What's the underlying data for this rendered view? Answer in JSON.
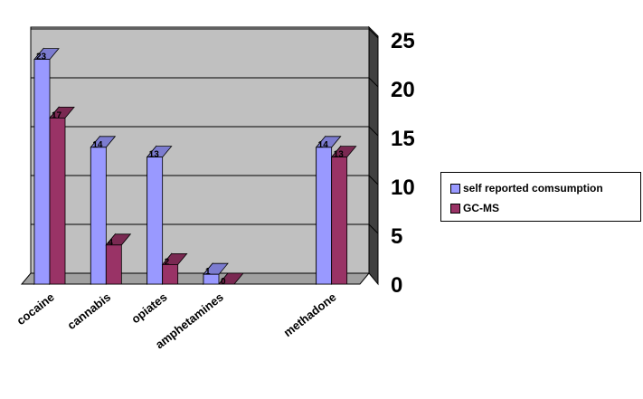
{
  "chart_data": {
    "type": "bar",
    "categories": [
      "cocaine",
      "cannabis",
      "opiates",
      "amphetamines",
      "",
      "methadone"
    ],
    "series": [
      {
        "name": "self reported comsumption",
        "values": [
          23,
          14,
          13,
          1,
          null,
          14
        ],
        "labels": [
          "23",
          "14",
          "13",
          "1",
          "",
          "14"
        ]
      },
      {
        "name": "GC-MS",
        "values": [
          17,
          4,
          2,
          0,
          null,
          13
        ],
        "labels": [
          "17",
          "4",
          "2",
          "0",
          "",
          "13"
        ]
      }
    ],
    "y_ticks": [
      "0",
      "5",
      "10",
      "15",
      "20",
      "25"
    ],
    "ylim": [
      0,
      25
    ],
    "grid": true,
    "legend": "right",
    "three_d": true,
    "colors": {
      "series1": "#9999ff",
      "series1_side": "#4b4b86",
      "series1_top": "#7c7cd0",
      "series2": "#993366",
      "series2_side": "#5c1f3d",
      "series2_top": "#7a2952",
      "wall": "#c0c0c0",
      "floor": "#a0a0a0",
      "wall_side": "#404040"
    }
  }
}
